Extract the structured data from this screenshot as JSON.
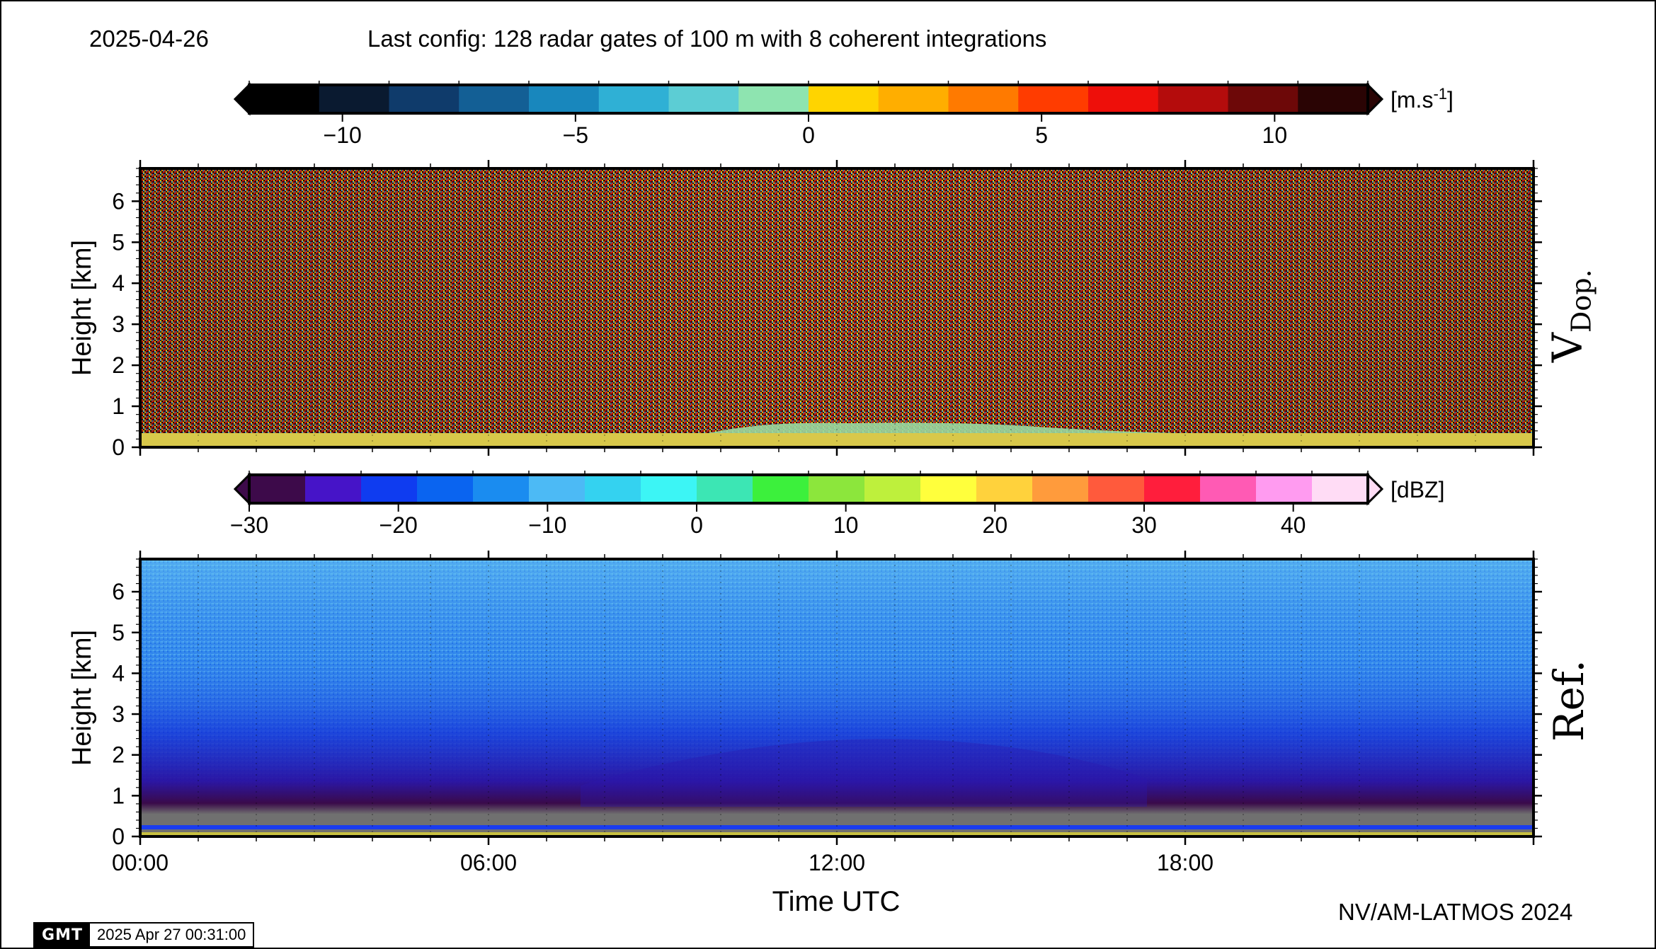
{
  "header": {
    "date": "2025-04-26",
    "config": "Last config: 128 radar gates of 100 m with 8 coherent integrations"
  },
  "footer": {
    "credit": "NV/AM-LATMOS 2024",
    "gmt_logo": "GMT",
    "timestamp": "2025 Apr 27 00:31:00"
  },
  "chart_data": [
    {
      "type": "heatmap",
      "name": "V Dop.",
      "panel_label": "V",
      "panel_label_sub": "Dop.",
      "ylabel": "Height [km]",
      "xlabel": "",
      "ylim": [
        0,
        6.8
      ],
      "yticks": [
        0,
        1,
        2,
        3,
        4,
        5,
        6
      ],
      "xlim": [
        "00:00",
        "24:00"
      ],
      "colorbar": {
        "unit": "[m.s-1]",
        "unit_base": "[m.s",
        "unit_sup": "-1",
        "unit_close": "]",
        "range": [
          -12,
          12
        ],
        "ticks": [
          -10,
          -5,
          0,
          5,
          10
        ],
        "tick_labels": [
          "−10",
          "−5",
          "0",
          "5",
          "10"
        ],
        "colors": [
          "#000000",
          "#0a1a30",
          "#0f3b6b",
          "#135f95",
          "#1887bd",
          "#2fb0d5",
          "#5ccdd4",
          "#8ee4b0",
          "#ffd400",
          "#ffae00",
          "#ff7a00",
          "#ff3c00",
          "#ee0f0a",
          "#b40c0c",
          "#6d0808",
          "#2a0404"
        ]
      },
      "description_values": {
        "surface_band_km": [
          0,
          0.25
        ],
        "surface_band_velocity": 0
      }
    },
    {
      "type": "heatmap",
      "name": "Ref.",
      "panel_label": "Ref.",
      "ylabel": "Height [km]",
      "xlabel": "Time UTC",
      "ylim": [
        0,
        6.8
      ],
      "yticks": [
        0,
        1,
        2,
        3,
        4,
        5,
        6
      ],
      "xlim": [
        "00:00",
        "24:00"
      ],
      "xticks": [
        "00:00",
        "06:00",
        "12:00",
        "18:00"
      ],
      "colorbar": {
        "unit": "[dBZ]",
        "range": [
          -30,
          45
        ],
        "ticks": [
          -30,
          -20,
          -10,
          0,
          10,
          20,
          30,
          40
        ],
        "tick_labels": [
          "−30",
          "−20",
          "−10",
          "0",
          "10",
          "20",
          "30",
          "40"
        ],
        "colors": [
          "#3d0a4a",
          "#4614c8",
          "#0f3cf0",
          "#0a64f0",
          "#1a8cf0",
          "#4cbaf5",
          "#34d2f0",
          "#3cf5f5",
          "#3ce6b4",
          "#3cf03c",
          "#8ce63c",
          "#bef03c",
          "#ffff3c",
          "#ffd23c",
          "#ff9b3c",
          "#ff5a3c",
          "#ff1e3c",
          "#ff5ab4",
          "#ff9bf0",
          "#ffdcf5"
        ]
      }
    }
  ]
}
